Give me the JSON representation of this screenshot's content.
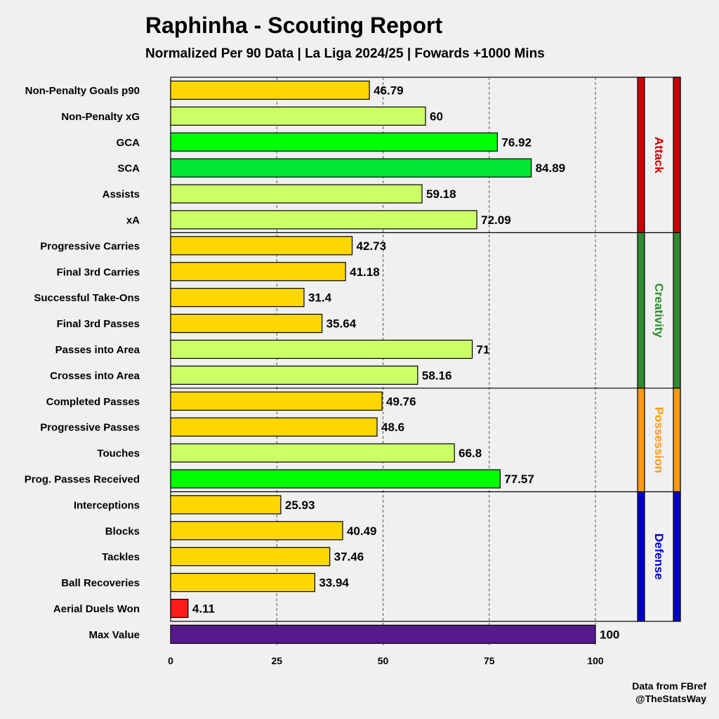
{
  "chart_data": {
    "type": "bar",
    "orientation": "horizontal",
    "title": "Raphinha - Scouting Report",
    "subtitle": "Normalized Per 90 Data | La Liga 2024/25 | Fowards +1000 Mins",
    "xlim": [
      0,
      100
    ],
    "xticks": [
      0,
      25,
      50,
      75,
      100
    ],
    "grid": "vertical dashed at 25, 50, 75, 100",
    "categories": [
      "Non-Penalty Goals p90",
      "Non-Penalty xG",
      "GCA",
      "SCA",
      "Assists",
      "xA",
      "Progressive Carries",
      "Final 3rd Carries",
      "Successful Take-Ons",
      "Final 3rd Passes",
      "Passes into Area",
      "Crosses into Area",
      "Completed Passes",
      "Progressive Passes",
      "Touches",
      "Prog. Passes Received",
      "Interceptions",
      "Blocks",
      "Tackles",
      "Ball Recoveries",
      "Aerial Duels Won",
      "Max Value"
    ],
    "values": [
      46.79,
      60,
      76.92,
      84.89,
      59.18,
      72.09,
      42.73,
      41.18,
      31.4,
      35.64,
      71,
      58.16,
      49.76,
      48.6,
      66.8,
      77.57,
      25.93,
      40.49,
      37.46,
      33.94,
      4.11,
      100
    ],
    "bar_colors": [
      "#ffd700",
      "#ccff66",
      "#00ff00",
      "#00e633",
      "#ccff66",
      "#ccff66",
      "#ffd700",
      "#ffd700",
      "#ffd700",
      "#ffd700",
      "#ccff66",
      "#ccff66",
      "#ffd700",
      "#ffd700",
      "#ccff66",
      "#00ff00",
      "#ffd700",
      "#ffd700",
      "#ffd700",
      "#ffd700",
      "#ff1a1a",
      "#561a8b"
    ],
    "groups": [
      {
        "label": "Attack",
        "color": "#cc0000",
        "text_color": "#cc0000",
        "start": 0,
        "end": 5
      },
      {
        "label": "Creativity",
        "color": "#2e8b2e",
        "text_color": "#2e8b2e",
        "start": 6,
        "end": 11
      },
      {
        "label": "Possession",
        "color": "#ff9910",
        "text_color": "#ff9910",
        "start": 12,
        "end": 15
      },
      {
        "label": "Defense",
        "color": "#0000cc",
        "text_color": "#0000cc",
        "start": 16,
        "end": 20
      }
    ]
  },
  "credit": {
    "line1": "Data from FBref",
    "line2": "@TheStatsWay"
  }
}
